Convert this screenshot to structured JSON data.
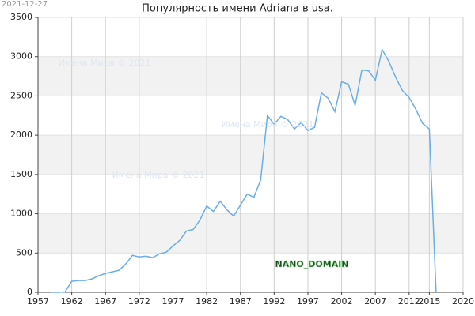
{
  "date_stamp": "2021-12-27",
  "chart_data": {
    "type": "line",
    "title": "Популярность имени Adriana в usa.",
    "x": [
      1959,
      1960,
      1961,
      1962,
      1963,
      1964,
      1965,
      1966,
      1967,
      1968,
      1969,
      1970,
      1971,
      1972,
      1973,
      1974,
      1975,
      1976,
      1977,
      1978,
      1979,
      1980,
      1981,
      1982,
      1983,
      1984,
      1985,
      1986,
      1987,
      1988,
      1989,
      1990,
      1991,
      1992,
      1993,
      1994,
      1995,
      1996,
      1997,
      1998,
      1999,
      2000,
      2001,
      2002,
      2003,
      2004,
      2005,
      2006,
      2007,
      2008,
      2009,
      2010,
      2011,
      2012,
      2013,
      2014,
      2015,
      2016
    ],
    "series": [
      {
        "name": "Adriana",
        "color": "#6aaee8",
        "values": [
          0,
          0,
          5,
          140,
          150,
          150,
          170,
          210,
          240,
          260,
          280,
          360,
          470,
          450,
          460,
          440,
          490,
          510,
          590,
          660,
          780,
          800,
          920,
          1100,
          1030,
          1160,
          1050,
          970,
          1110,
          1250,
          1210,
          1430,
          2250,
          2140,
          2240,
          2200,
          2080,
          2160,
          2060,
          2100,
          2540,
          2470,
          2300,
          2680,
          2650,
          2380,
          2830,
          2820,
          2700,
          3090,
          2940,
          2740,
          2570,
          2480,
          2330,
          2150,
          2080,
          0
        ]
      }
    ],
    "xlim": [
      1957,
      2020
    ],
    "xticks": [
      1957,
      1962,
      1967,
      1972,
      1977,
      1982,
      1987,
      1992,
      1997,
      2002,
      2007,
      2012,
      2015,
      2020
    ],
    "ylim": [
      0,
      3500
    ],
    "yticks": [
      0,
      500,
      1000,
      1500,
      2000,
      2500,
      3000,
      3500
    ],
    "grid": true,
    "bands": true,
    "annotations": [
      "Имена Мира © 2021",
      "Имена Мира © 2021",
      "Имена Мира © 2021",
      "NANO_DOMAIN"
    ]
  }
}
